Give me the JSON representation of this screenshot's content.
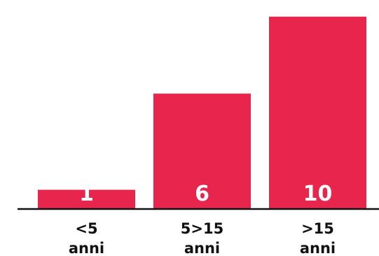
{
  "chart_data": {
    "type": "bar",
    "title": "",
    "xlabel": "",
    "ylabel": "",
    "categories": [
      [
        "<5",
        "anni"
      ],
      [
        "5>15",
        "anni"
      ],
      [
        ">15",
        "anni"
      ]
    ],
    "values": [
      1,
      6,
      10
    ],
    "data_labels": [
      "1",
      "6",
      "10"
    ],
    "ylim": [
      0,
      10.5
    ],
    "grid": false,
    "legend": "none",
    "bar_color": "#e8254c",
    "axis_color": "#111111"
  }
}
